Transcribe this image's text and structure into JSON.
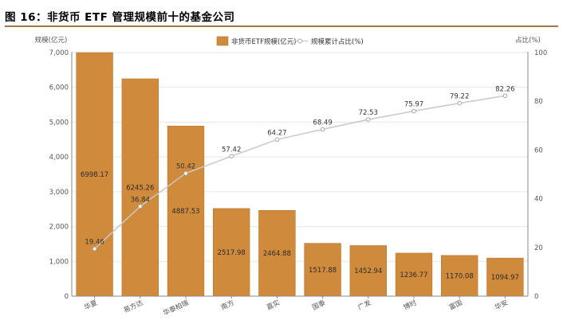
{
  "title": "图 16：非货币 ETF 管理规模前十的基金公司",
  "chart_data": {
    "type": "bar",
    "categories": [
      "华夏",
      "易方达",
      "华泰柏瑞",
      "南方",
      "嘉实",
      "国泰",
      "广发",
      "博时",
      "富国",
      "华安"
    ],
    "series": [
      {
        "name": "非货币ETF规模(亿元)",
        "type": "bar",
        "axis": "left",
        "values": [
          6998.17,
          6245.26,
          4887.53,
          2517.98,
          2464.88,
          1517.88,
          1452.94,
          1236.77,
          1170.08,
          1094.97
        ],
        "labels": [
          "6998.17",
          "6245.26",
          "4887.53",
          "2517.98",
          "2464.88",
          "1517.88",
          "1452.94",
          "1236.77",
          "1170.08",
          "1094.97"
        ]
      },
      {
        "name": "规模累计占比(%)",
        "type": "line",
        "axis": "right",
        "values": [
          19.46,
          36.84,
          50.42,
          57.42,
          64.27,
          68.49,
          72.53,
          75.97,
          79.22,
          82.26
        ],
        "labels": [
          "19.46",
          "36.84",
          "50.42",
          "57.42",
          "64.27",
          "68.49",
          "72.53",
          "75.97",
          "79.22",
          "82.26"
        ]
      }
    ],
    "ylabel": "规模(亿元)",
    "y2label": "占比(%)",
    "ylim": [
      0,
      7000
    ],
    "y2lim": [
      0,
      100
    ],
    "yticks": [
      "0",
      "1,000",
      "2,000",
      "3,000",
      "4,000",
      "5,000",
      "6,000",
      "7,000"
    ],
    "y2ticks": [
      "0",
      "20",
      "40",
      "60",
      "80",
      "100"
    ],
    "legend_position": "top-center",
    "grid": true,
    "colors": {
      "bar": "#d08a3c",
      "bar_edge": "#b9732a",
      "line": "#c8c8c8",
      "marker_fill": "#ffffff",
      "marker_edge": "#a8a8a8",
      "grid": "#e6e6e6",
      "rule": "#9e7b40"
    }
  }
}
